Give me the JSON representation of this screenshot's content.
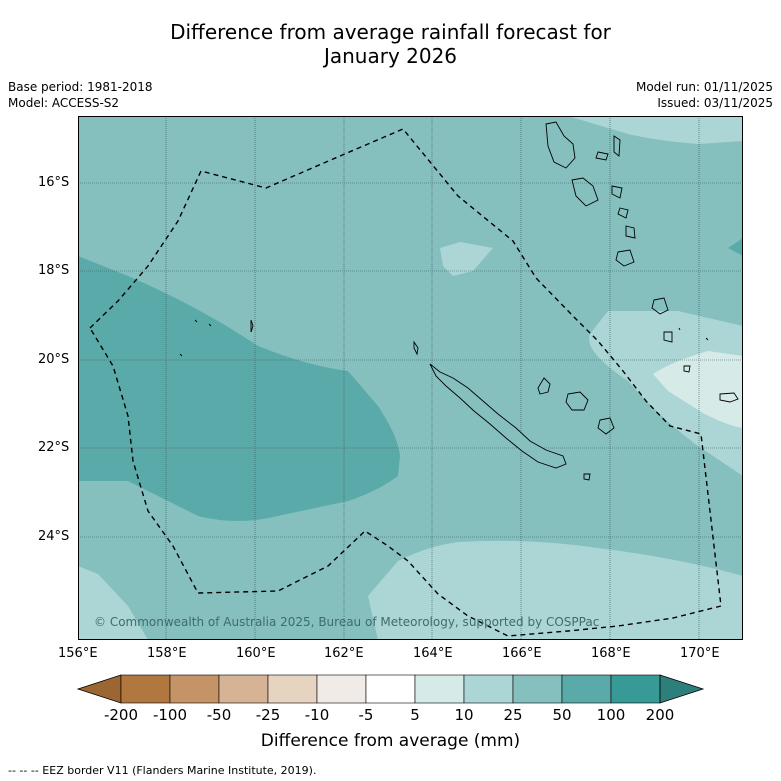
{
  "title_line1": "Difference from average rainfall forecast for",
  "title_line2": "January 2026",
  "base_period": "Base period: 1981-2018",
  "model": "Model: ACCESS-S2",
  "model_run": "Model run: 01/11/2025",
  "issued": "Issued: 03/11/2025",
  "lat_labels": [
    "16°S",
    "18°S",
    "20°S",
    "22°S",
    "24°S"
  ],
  "lon_labels": [
    "156°E",
    "158°E",
    "160°E",
    "162°E",
    "164°E",
    "166°E",
    "168°E",
    "170°E"
  ],
  "copyright": "© Commonwealth of Australia 2025, Bureau of Meteorology, supported by COSPPac",
  "colorbar": {
    "labels": [
      "-200",
      "-100",
      "-50",
      "-25",
      "-10",
      "-5",
      "5",
      "10",
      "25",
      "50",
      "100",
      "200"
    ],
    "colors": [
      "#9c6632",
      "#b0773f",
      "#c49468",
      "#d5b394",
      "#e6d3c0",
      "#f1ebe7",
      "#ffffff",
      "#d6ebe8",
      "#acd6d5",
      "#85c0bf",
      "#5aaaaa",
      "#389a97",
      "#2d7f7c"
    ],
    "title": "Difference from average (mm)"
  },
  "footer": "--  --  -- EEZ border V11 (Flanders Marine Institute, 2019)."
}
